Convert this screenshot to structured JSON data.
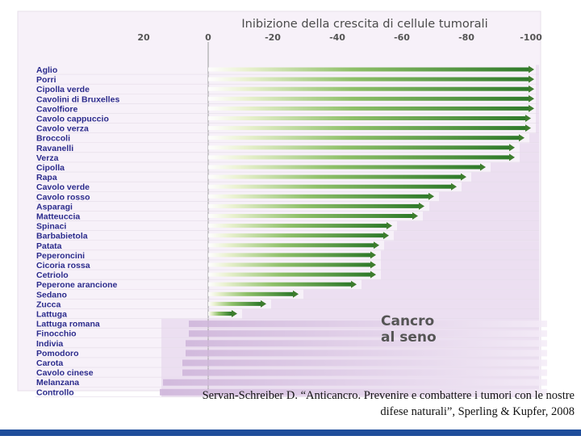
{
  "chart_data": {
    "type": "bar",
    "title": "Inibizione della crescita di cellule tumorali",
    "xlim": [
      20,
      -100
    ],
    "ticks": [
      20,
      0,
      -20,
      -40,
      -60,
      -80,
      -100
    ],
    "annotation": [
      "Cancro",
      "al seno"
    ],
    "categories": [
      "Aglio",
      "Porri",
      "Cipolla verde",
      "Cavolini di Bruxelles",
      "Cavolfiore",
      "Cavolo cappuccio",
      "Cavolo verza",
      "Broccoli",
      "Ravanelli",
      "Verza",
      "Cipolla",
      "Rapa",
      "Cavolo verde",
      "Cavolo rosso",
      "Asparagi",
      "Matteuccia",
      "Spinaci",
      "Barbabietola",
      "Patata",
      "Peperoncini",
      "Cicoria rossa",
      "Cetriolo",
      "Peperone arancione",
      "Sedano",
      "Zucca",
      "Lattuga",
      "Lattuga romana",
      "Finocchio",
      "Indivia",
      "Pomodoro",
      "Carota",
      "Cavolo cinese",
      "Melanzana",
      "Controllo"
    ],
    "values": [
      -101,
      -101,
      -101,
      -101,
      -101,
      -100,
      -100,
      -98,
      -95,
      -95,
      -86,
      -80,
      -77,
      -70,
      -67,
      -65,
      -57,
      -56,
      -53,
      -52,
      -52,
      -52,
      -46,
      -28,
      -18,
      -9,
      6,
      6,
      7,
      7,
      8,
      8,
      14,
      15
    ]
  },
  "citation": {
    "line1": "Servan-Schreiber D. “Anticancro. Prevenire e combattere i tumori con le nostre",
    "line2": "difese naturali”, Sperling & Kupfer, 2008"
  },
  "colors": {
    "inhibition_bar": "#3e7d2e",
    "growth_bar": "#cfb7da",
    "background_band": "#ecdff1",
    "label_text": "#2b2b8c",
    "footer_bar": "#1f4e9b"
  }
}
